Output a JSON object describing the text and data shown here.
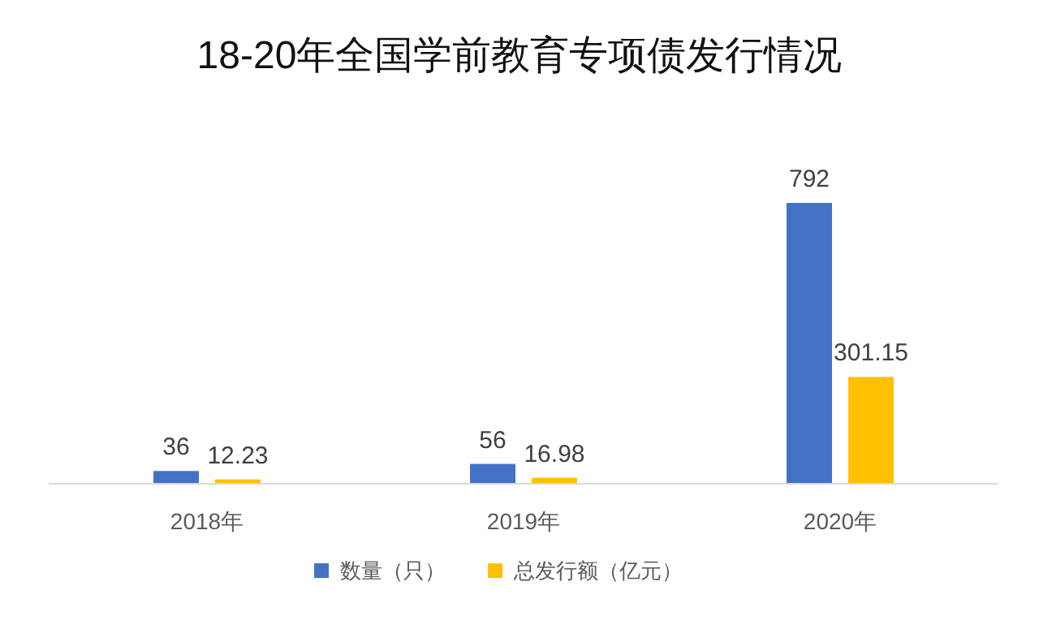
{
  "chart_data": {
    "type": "bar",
    "title": "18-20年全国学前教育专项债发行情况",
    "categories": [
      "2018年",
      "2019年",
      "2020年"
    ],
    "series": [
      {
        "name": "数量（只）",
        "color": "#4472c4",
        "values": [
          36,
          56,
          792
        ]
      },
      {
        "name": "总发行额（亿元）",
        "color": "#ffc000",
        "values": [
          12.23,
          16.98,
          301.15
        ]
      }
    ],
    "data_labels": true,
    "legend": "bottom",
    "grid": false
  }
}
